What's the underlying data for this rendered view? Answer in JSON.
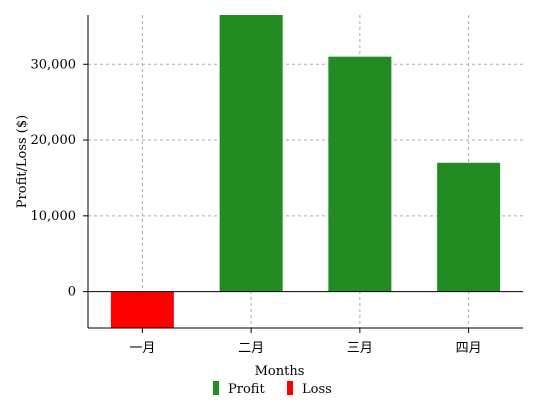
{
  "chart_data": {
    "type": "bar",
    "categories": [
      "一月",
      "二月",
      "三月",
      "四月"
    ],
    "series": [
      {
        "values": [
          -4800,
          36500,
          31000,
          17000
        ],
        "colors": [
          "#ff0000",
          "#228b22",
          "#228b22",
          "#228b22"
        ]
      }
    ],
    "xlabel": "Months",
    "ylabel": "Profit/Loss ($)",
    "yticks": [
      0,
      10000,
      20000,
      30000
    ],
    "ytick_labels": [
      "0",
      "10,000",
      "20,000",
      "30,000"
    ],
    "ylim": [
      -4800,
      36500
    ],
    "grid": true,
    "legend": {
      "placement": "bottom-center",
      "items": [
        {
          "label": "Profit",
          "color": "#228b22"
        },
        {
          "label": "Loss",
          "color": "#ff0000"
        }
      ]
    }
  }
}
